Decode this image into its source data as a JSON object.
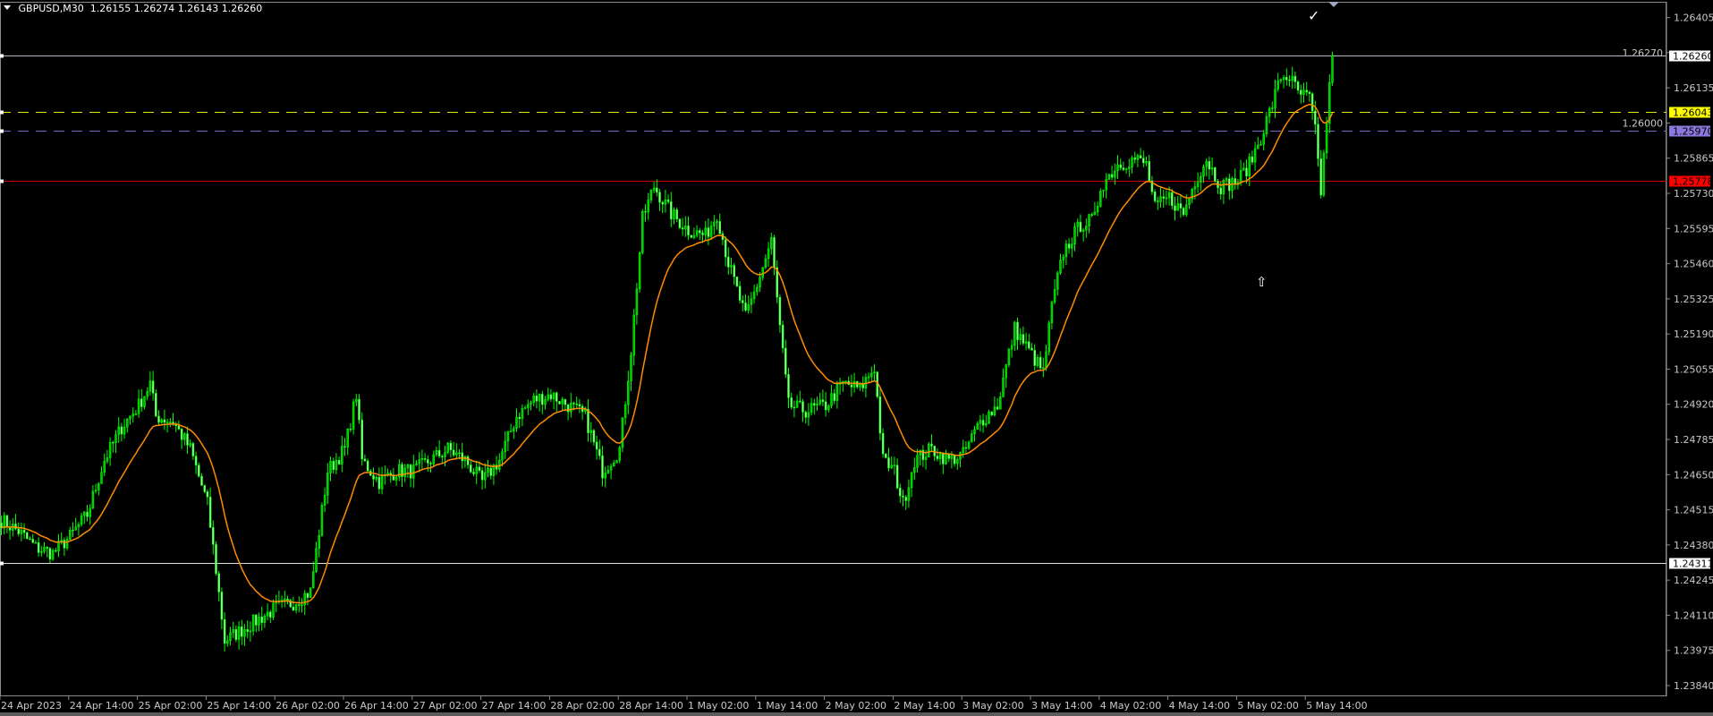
{
  "header": {
    "symbol": "GBPUSD,M30",
    "open": "1.26155",
    "high": "1.26274",
    "low": "1.26143",
    "close": "1.26260"
  },
  "colors": {
    "background": "#000000",
    "bull_candle": "#00c800",
    "bear_candle": "#90ff90",
    "wick": "#00ff00",
    "moving_average": "#ff8c00",
    "axis_text": "#c8c8c8"
  },
  "markers": {
    "checkmark": "✓",
    "arrow_up": "⇧"
  },
  "chart_data": {
    "type": "candlestick",
    "title": "GBPUSD,M30",
    "ylim": [
      1.2379,
      1.2644
    ],
    "y_ticks": [
      "1.26405",
      "1.26270",
      "1.26135",
      "1.26000",
      "1.25865",
      "1.25730",
      "1.25595",
      "1.25460",
      "1.25325",
      "1.25190",
      "1.25055",
      "1.24920",
      "1.24785",
      "1.24650",
      "1.24515",
      "1.24380",
      "1.24245",
      "1.24110",
      "1.23975",
      "1.23840"
    ],
    "x_ticks": [
      "24 Apr 2023",
      "24 Apr 14:00",
      "25 Apr 02:00",
      "25 Apr 14:00",
      "26 Apr 02:00",
      "26 Apr 14:00",
      "27 Apr 02:00",
      "27 Apr 14:00",
      "28 Apr 02:00",
      "28 Apr 14:00",
      "1 May 02:00",
      "1 May 14:00",
      "2 May 02:00",
      "2 May 14:00",
      "3 May 02:00",
      "3 May 14:00",
      "4 May 02:00",
      "4 May 14:00",
      "5 May 02:00",
      "5 May 14:00"
    ],
    "trading_days": [
      "24 Apr",
      "25 Apr",
      "26 Apr",
      "27 Apr",
      "28 Apr",
      "1 May",
      "2 May",
      "3 May",
      "4 May",
      "5 May"
    ],
    "approx_closes": [
      [
        "24 Apr 02:00",
        1.24475
      ],
      [
        "24 Apr 05:00",
        1.24433
      ],
      [
        "24 Apr 08:00",
        1.2437
      ],
      [
        "24 Apr 11:00",
        1.24348
      ],
      [
        "24 Apr 14:00",
        1.24412
      ],
      [
        "24 Apr 17:00",
        1.24496
      ],
      [
        "24 Apr 20:00",
        1.24706
      ],
      [
        "24 Apr 23:00",
        1.24832
      ],
      [
        "25 Apr 02:00",
        1.24916
      ],
      [
        "25 Apr 04:00",
        1.25
      ],
      [
        "25 Apr 05:00",
        1.24874
      ],
      [
        "25 Apr 08:00",
        1.24853
      ],
      [
        "25 Apr 11:00",
        1.24748
      ],
      [
        "25 Apr 14:00",
        1.24538
      ],
      [
        "25 Apr 15:30",
        1.24285
      ],
      [
        "25 Apr 17:00",
        1.24012
      ],
      [
        "25 Apr 20:00",
        1.24054
      ],
      [
        "25 Apr 23:00",
        1.24096
      ],
      [
        "26 Apr 02:00",
        1.24138
      ],
      [
        "26 Apr 05:00",
        1.24159
      ],
      [
        "26 Apr 08:00",
        1.24201
      ],
      [
        "26 Apr 11:00",
        1.24664
      ],
      [
        "26 Apr 14:00",
        1.24748
      ],
      [
        "26 Apr 16:00",
        1.24958
      ],
      [
        "26 Apr 17:00",
        1.24706
      ],
      [
        "26 Apr 20:00",
        1.24622
      ],
      [
        "26 Apr 23:00",
        1.24664
      ],
      [
        "27 Apr 02:00",
        1.24664
      ],
      [
        "27 Apr 05:00",
        1.24706
      ],
      [
        "27 Apr 08:00",
        1.24748
      ],
      [
        "27 Apr 11:00",
        1.24706
      ],
      [
        "27 Apr 14:00",
        1.24622
      ],
      [
        "27 Apr 17:00",
        1.24706
      ],
      [
        "27 Apr 20:00",
        1.24874
      ],
      [
        "27 Apr 23:00",
        1.24937
      ],
      [
        "28 Apr 02:00",
        1.24958
      ],
      [
        "28 Apr 05:00",
        1.24916
      ],
      [
        "28 Apr 08:00",
        1.24874
      ],
      [
        "28 Apr 11:00",
        1.24664
      ],
      [
        "28 Apr 14:00",
        1.24748
      ],
      [
        "28 Apr 16:00",
        1.25126
      ],
      [
        "28 Apr 18:00",
        1.25631
      ],
      [
        "28 Apr 20:00",
        1.25757
      ],
      [
        "28 Apr 23:00",
        1.25652
      ],
      [
        "1 May 02:00",
        1.25589
      ],
      [
        "1 May 05:00",
        1.25568
      ],
      [
        "1 May 07:00",
        1.25652
      ],
      [
        "1 May 09:00",
        1.25463
      ],
      [
        "1 May 12:00",
        1.25253
      ],
      [
        "1 May 14:00",
        1.25379
      ],
      [
        "1 May 16:30",
        1.25547
      ],
      [
        "1 May 18:00",
        1.25211
      ],
      [
        "1 May 19:30",
        1.24916
      ],
      [
        "1 May 22:30",
        1.24895
      ],
      [
        "2 May 02:00",
        1.24916
      ],
      [
        "2 May 05:00",
        1.25
      ],
      [
        "2 May 08:00",
        1.24979
      ],
      [
        "2 May 10:30",
        1.25063
      ],
      [
        "2 May 12:00",
        1.24706
      ],
      [
        "2 May 14:00",
        1.24664
      ],
      [
        "2 May 15:30",
        1.24538
      ],
      [
        "2 May 17:30",
        1.24706
      ],
      [
        "2 May 20:30",
        1.24748
      ],
      [
        "2 May 23:30",
        1.24706
      ],
      [
        "3 May 02:00",
        1.24727
      ],
      [
        "3 May 05:00",
        1.24853
      ],
      [
        "3 May 08:00",
        1.24916
      ],
      [
        "3 May 11:00",
        1.25211
      ],
      [
        "3 May 13:30",
        1.25126
      ],
      [
        "3 May 16:00",
        1.25042
      ],
      [
        "3 May 17:30",
        1.25295
      ],
      [
        "3 May 19:30",
        1.25505
      ],
      [
        "3 May 22:30",
        1.2561
      ],
      [
        "4 May 01:00",
        1.25631
      ],
      [
        "4 May 02:00",
        1.25757
      ],
      [
        "4 May 05:00",
        1.25841
      ],
      [
        "4 May 08:00",
        1.25862
      ],
      [
        "4 May 10:00",
        1.25841
      ],
      [
        "4 May 11:30",
        1.25673
      ],
      [
        "4 May 14:00",
        1.25715
      ],
      [
        "4 May 16:30",
        1.25652
      ],
      [
        "4 May 18:30",
        1.25778
      ],
      [
        "4 May 20:30",
        1.25862
      ],
      [
        "4 May 23:00",
        1.25757
      ],
      [
        "5 May 02:00",
        1.25778
      ],
      [
        "5 May 04:00",
        1.25841
      ],
      [
        "5 May 06:00",
        1.25946
      ],
      [
        "5 May 08:00",
        1.26073
      ],
      [
        "5 May 09:30",
        1.26178
      ],
      [
        "5 May 11:00",
        1.26178
      ],
      [
        "5 May 12:30",
        1.26115
      ],
      [
        "5 May 14:30",
        1.26094
      ],
      [
        "5 May 15:30",
        1.25967
      ],
      [
        "5 May 16:30",
        1.25736
      ],
      [
        "5 May 17:30",
        1.26009
      ],
      [
        "5 May 18:30",
        1.2626
      ]
    ],
    "horizontal_lines": [
      {
        "price": "1.26260",
        "color": "#b4bcc8",
        "style": "solid",
        "label_bg": "#ffffff",
        "label_fg": "#000000"
      },
      {
        "price": "1.26043",
        "color": "#e6e600",
        "style": "dashed",
        "label_bg": "#ffff00",
        "label_fg": "#000000"
      },
      {
        "price": "1.25970",
        "color": "#7a68c8",
        "style": "dashed",
        "label_bg": "#8c78dc",
        "label_fg": "#000000"
      },
      {
        "price": "1.25778",
        "color": "#d00000",
        "style": "solid",
        "label_bg": "#ff0000",
        "label_fg": "#000000"
      },
      {
        "price": "1.24311",
        "color": "#e0e0e0",
        "style": "solid",
        "label_bg": "#ffffff",
        "label_fg": "#000000"
      }
    ],
    "moving_average": {
      "color": "#ff8c00"
    }
  }
}
